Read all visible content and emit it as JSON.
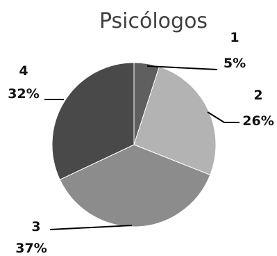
{
  "chart_data": {
    "type": "pie",
    "title": "Psicólogos",
    "slices": [
      {
        "category": "1",
        "value": 5,
        "label": "5%",
        "color": "#5f5f5f"
      },
      {
        "category": "2",
        "value": 26,
        "label": "26%",
        "color": "#b3b3b3"
      },
      {
        "category": "3",
        "value": 37,
        "label": "37%",
        "color": "#8c8c8c"
      },
      {
        "category": "4",
        "value": 32,
        "label": "32%",
        "color": "#494949"
      }
    ]
  }
}
